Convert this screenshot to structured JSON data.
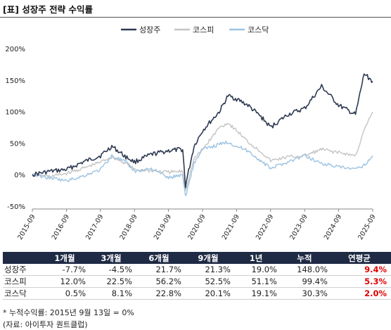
{
  "title": "[표] 성장주 전략 수익률",
  "colors": {
    "growth": "#2e3a52",
    "kospi": "#c4c4c4",
    "kosdaq": "#9cc3e2",
    "header_bg": "#1f2a44",
    "highlight": "#e00000"
  },
  "chart_data": {
    "type": "line",
    "title": "",
    "xlabel": "",
    "ylabel": "",
    "ylim": [
      -50,
      200
    ],
    "yticks": [
      "-50%",
      "0%",
      "50%",
      "100%",
      "150%",
      "200%"
    ],
    "ytick_values": [
      -50,
      0,
      50,
      100,
      150,
      200
    ],
    "xticks": [
      "2015-09",
      "2016-09",
      "2017-09",
      "2018-09",
      "2019-09",
      "2020-09",
      "2021-09",
      "2022-09",
      "2023-09",
      "2024-09",
      "2025-09"
    ],
    "x": [
      "2015-09",
      "2016-03",
      "2016-09",
      "2017-03",
      "2017-09",
      "2018-01",
      "2018-06",
      "2018-09",
      "2019-03",
      "2019-09",
      "2020-02",
      "2020-03",
      "2020-06",
      "2020-09",
      "2021-03",
      "2021-06",
      "2021-09",
      "2022-01",
      "2022-06",
      "2022-09",
      "2023-03",
      "2023-09",
      "2024-03",
      "2024-09",
      "2025-03",
      "2025-06",
      "2025-09"
    ],
    "grid": false,
    "legend": "top-center",
    "series": [
      {
        "name": "성장주",
        "values": [
          0,
          5,
          8,
          20,
          30,
          45,
          28,
          20,
          32,
          38,
          40,
          -18,
          45,
          70,
          100,
          125,
          120,
          110,
          90,
          75,
          95,
          105,
          140,
          110,
          95,
          160,
          148
        ]
      },
      {
        "name": "코스피",
        "values": [
          0,
          -3,
          2,
          10,
          20,
          28,
          18,
          8,
          6,
          4,
          5,
          -25,
          25,
          40,
          75,
          82,
          70,
          52,
          35,
          22,
          28,
          30,
          40,
          35,
          30,
          70,
          99.4
        ]
      },
      {
        "name": "코스닥",
        "values": [
          0,
          -5,
          -10,
          -2,
          8,
          30,
          20,
          5,
          10,
          -5,
          0,
          -35,
          18,
          40,
          48,
          52,
          45,
          38,
          20,
          10,
          20,
          30,
          18,
          12,
          8,
          15,
          30.3
        ]
      }
    ]
  },
  "table": {
    "headers": [
      "",
      "1개월",
      "3개월",
      "6개월",
      "9개월",
      "1년",
      "누적",
      "연평균"
    ],
    "rows": [
      {
        "label": "성장주",
        "values": [
          "-7.7%",
          "-4.5%",
          "21.7%",
          "21.3%",
          "19.0%",
          "148.0%"
        ],
        "annual": "9.4%"
      },
      {
        "label": "코스피",
        "values": [
          "12.0%",
          "22.5%",
          "56.2%",
          "52.5%",
          "51.1%",
          "99.4%"
        ],
        "annual": "5.3%"
      },
      {
        "label": "코스닥",
        "values": [
          "0.5%",
          "8.1%",
          "22.8%",
          "20.1%",
          "19.1%",
          "30.3%"
        ],
        "annual": "2.0%"
      }
    ]
  },
  "notes": {
    "note1": "* 누적수익률: 2015년 9월 13일 = 0%",
    "note2": "(자료: 아이투자 퀀트클럽)"
  }
}
